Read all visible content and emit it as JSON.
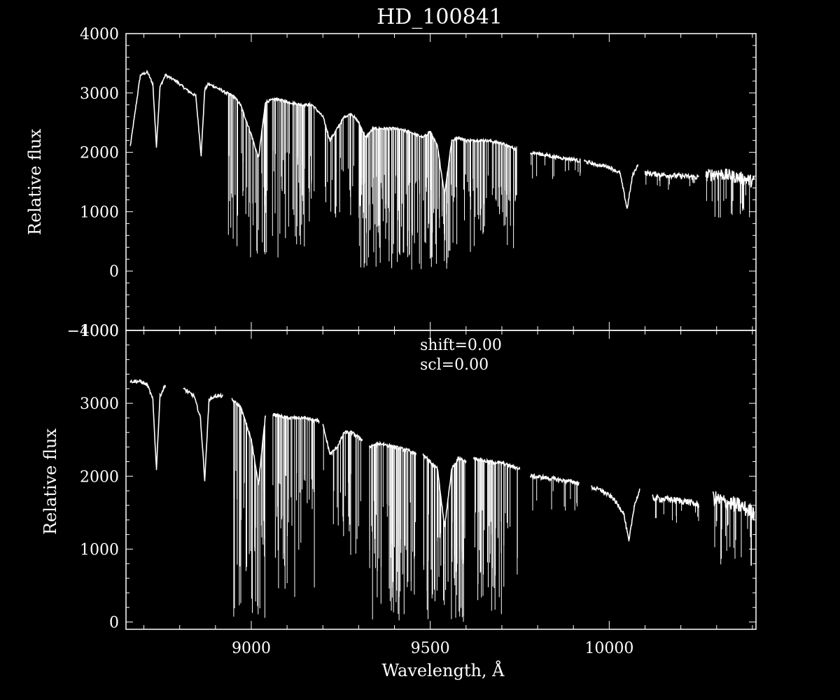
{
  "colors": {
    "background": "#000000",
    "foreground": "#ffffff"
  },
  "title": "HD_100841",
  "chart_data": [
    {
      "type": "line",
      "panel": "top",
      "title": "HD_100841",
      "xlabel": "",
      "ylabel": "Relative flux",
      "xlim": [
        8650,
        10410
      ],
      "ylim": [
        -1000,
        4000
      ],
      "yticks": [
        {
          "value": -1000,
          "label": "−1000"
        },
        {
          "value": 0,
          "label": "0"
        },
        {
          "value": 1000,
          "label": "1000"
        },
        {
          "value": 2000,
          "label": "2000"
        },
        {
          "value": 3000,
          "label": "3000"
        },
        {
          "value": 4000,
          "label": "4000"
        }
      ],
      "xticks": [
        9000,
        9500,
        10000
      ],
      "annotations": [],
      "series": [
        {
          "segments": [
            {
              "x": [
                8662,
                8690,
                8710,
                8725,
                8735,
                8745,
                8760,
                8790,
                8820,
                8845,
                8860,
                8870,
                8880,
                8900,
                8930,
                8950,
                8970,
                9000,
                9020,
                9040,
                9070,
                9100,
                9140,
                9170,
                9200,
                9220,
                9240,
                9260,
                9280,
                9300,
                9320,
                9340,
                9360,
                9400,
                9440,
                9480,
                9500,
                9520,
                9540,
                9560,
                9580,
                9600,
                9620,
                9660,
                9700,
                9740
              ],
              "y": [
                2100,
                3300,
                3350,
                3150,
                2100,
                3100,
                3300,
                3200,
                3050,
                2950,
                1950,
                3050,
                3150,
                3100,
                3000,
                2950,
                2800,
                2300,
                1900,
                2850,
                2900,
                2850,
                2800,
                2800,
                2600,
                2200,
                2400,
                2600,
                2650,
                2500,
                2250,
                2400,
                2400,
                2400,
                2350,
                2250,
                2350,
                2100,
                1300,
                2200,
                2250,
                2200,
                2200,
                2200,
                2150,
                2050
              ],
              "absorption": [
                {
                  "from": 8930,
                  "to": 9100,
                  "count": 50,
                  "min": 200
                },
                {
                  "from": 9100,
                  "to": 9180,
                  "count": 30,
                  "min": 400
                },
                {
                  "from": 9200,
                  "to": 9290,
                  "count": 20,
                  "min": 900
                },
                {
                  "from": 9300,
                  "to": 9560,
                  "count": 140,
                  "min": 0
                },
                {
                  "from": 9560,
                  "to": 9760,
                  "count": 60,
                  "min": 300
                }
              ]
            },
            {
              "x": [
                9780,
                9800,
                9850,
                9900,
                9920
              ],
              "y": [
                2000,
                1980,
                1920,
                1880,
                1850
              ],
              "absorption": [
                {
                  "from": 9780,
                  "to": 9920,
                  "count": 12,
                  "min": 1500
                }
              ]
            },
            {
              "x": [
                9930,
                9960,
                10000,
                10030,
                10050,
                10065,
                10080
              ],
              "y": [
                1850,
                1800,
                1750,
                1650,
                1050,
                1600,
                1800
              ],
              "absorption": []
            },
            {
              "x": [
                10100,
                10150,
                10200,
                10250
              ],
              "y": [
                1650,
                1620,
                1600,
                1580
              ],
              "absorption": [
                {
                  "from": 10100,
                  "to": 10250,
                  "count": 10,
                  "min": 1350
                }
              ]
            },
            {
              "x": [
                10270,
                10300,
                10340,
                10380,
                10405
              ],
              "y": [
                1600,
                1650,
                1600,
                1550,
                1500
              ],
              "absorption": [
                {
                  "from": 10270,
                  "to": 10405,
                  "count": 20,
                  "min": 850
                }
              ]
            }
          ]
        }
      ]
    },
    {
      "type": "line",
      "panel": "bottom",
      "title": "",
      "xlabel": "Wavelength, Å",
      "ylabel": "Relative flux",
      "xlim": [
        8650,
        10410
      ],
      "ylim": [
        -100,
        4000
      ],
      "yticks": [
        {
          "value": 0,
          "label": "0"
        },
        {
          "value": 1000,
          "label": "1000"
        },
        {
          "value": 2000,
          "label": "2000"
        },
        {
          "value": 3000,
          "label": "3000"
        },
        {
          "value": 4000,
          "label": "4000"
        }
      ],
      "xticks": [
        9000,
        9500,
        10000
      ],
      "annotations": [
        "shift=0.00",
        "scl=0.00"
      ],
      "series": [
        {
          "segments": [
            {
              "x": [
                8662,
                8690,
                8710,
                8725,
                8735,
                8745,
                8760
              ],
              "y": [
                3300,
                3300,
                3250,
                3050,
                2100,
                3100,
                3250
              ],
              "absorption": []
            },
            {
              "x": [
                8810,
                8840,
                8858,
                8870,
                8882,
                8900,
                8920
              ],
              "y": [
                3200,
                3100,
                2800,
                1950,
                3050,
                3100,
                3100
              ],
              "absorption": []
            },
            {
              "x": [
                8945,
                8970,
                9000,
                9020,
                9040
              ],
              "y": [
                3050,
                2950,
                2500,
                1900,
                2850
              ],
              "absorption": [
                {
                  "from": 8945,
                  "to": 9040,
                  "count": 35,
                  "min": 50
                }
              ]
            },
            {
              "x": [
                9060,
                9100,
                9150,
                9190
              ],
              "y": [
                2850,
                2800,
                2800,
                2750
              ],
              "absorption": [
                {
                  "from": 9060,
                  "to": 9190,
                  "count": 40,
                  "min": 300
                }
              ]
            },
            {
              "x": [
                9200,
                9220,
                9240,
                9260,
                9280,
                9310
              ],
              "y": [
                2700,
                2300,
                2400,
                2600,
                2600,
                2500
              ],
              "absorption": [
                {
                  "from": 9200,
                  "to": 9310,
                  "count": 20,
                  "min": 900
                }
              ]
            },
            {
              "x": [
                9330,
                9360,
                9400,
                9440,
                9460
              ],
              "y": [
                2400,
                2450,
                2400,
                2350,
                2300
              ],
              "absorption": [
                {
                  "from": 9330,
                  "to": 9460,
                  "count": 60,
                  "min": 0
                }
              ]
            },
            {
              "x": [
                9480,
                9500,
                9520,
                9540,
                9560,
                9580,
                9600
              ],
              "y": [
                2300,
                2200,
                2100,
                1300,
                2100,
                2250,
                2200
              ],
              "absorption": [
                {
                  "from": 9480,
                  "to": 9600,
                  "count": 50,
                  "min": 0
                }
              ]
            },
            {
              "x": [
                9620,
                9660,
                9700,
                9750
              ],
              "y": [
                2250,
                2200,
                2180,
                2100
              ],
              "absorption": [
                {
                  "from": 9620,
                  "to": 9750,
                  "count": 40,
                  "min": 100
                }
              ]
            },
            {
              "x": [
                9780,
                9820,
                9860,
                9900,
                9915
              ],
              "y": [
                2000,
                1980,
                1950,
                1920,
                1900
              ],
              "absorption": [
                {
                  "from": 9780,
                  "to": 9915,
                  "count": 10,
                  "min": 1500
                }
              ]
            },
            {
              "x": [
                9950,
                9980,
                10010,
                10040,
                10055,
                10070,
                10085
              ],
              "y": [
                1850,
                1800,
                1700,
                1500,
                1100,
                1600,
                1800
              ],
              "absorption": []
            },
            {
              "x": [
                10120,
                10170,
                10220,
                10250
              ],
              "y": [
                1700,
                1680,
                1650,
                1600
              ],
              "absorption": [
                {
                  "from": 10120,
                  "to": 10250,
                  "count": 10,
                  "min": 1350
                }
              ]
            },
            {
              "x": [
                10290,
                10320,
                10360,
                10405
              ],
              "y": [
                1700,
                1650,
                1600,
                1500
              ],
              "absorption": [
                {
                  "from": 10290,
                  "to": 10405,
                  "count": 20,
                  "min": 750
                }
              ]
            }
          ]
        }
      ]
    }
  ]
}
